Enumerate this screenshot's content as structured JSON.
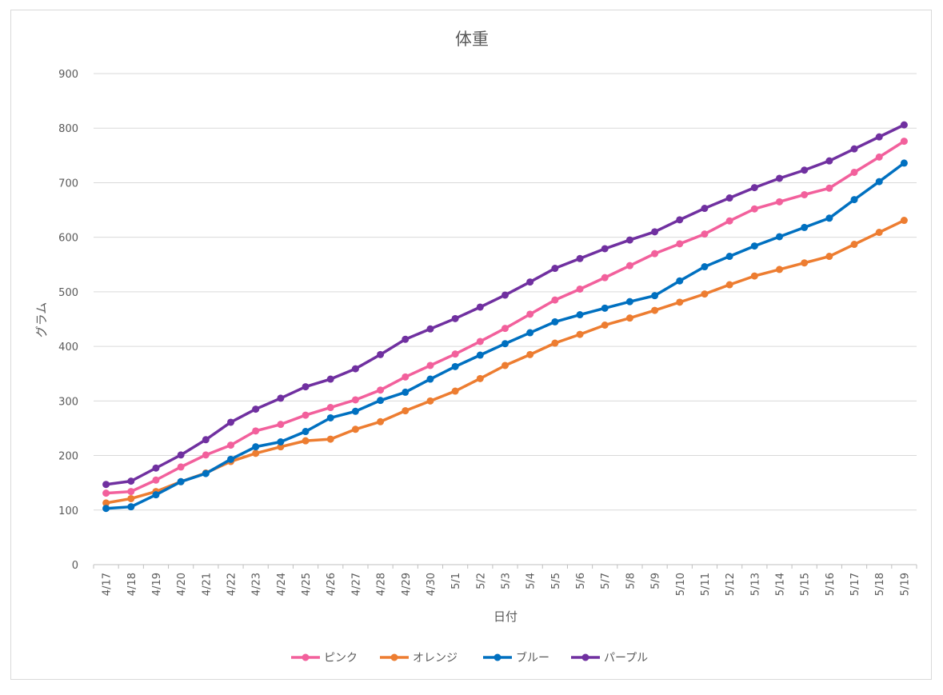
{
  "chart_data": {
    "type": "line",
    "title": "体重",
    "xlabel": "日付",
    "ylabel": "グラム",
    "ylim": [
      0,
      900
    ],
    "yticks": [
      0,
      100,
      200,
      300,
      400,
      500,
      600,
      700,
      800,
      900
    ],
    "grid": true,
    "legend": "bottom",
    "categories": [
      "4/17",
      "4/18",
      "4/19",
      "4/20",
      "4/21",
      "4/22",
      "4/23",
      "4/24",
      "4/25",
      "4/26",
      "4/27",
      "4/28",
      "4/29",
      "4/30",
      "5/1",
      "5/2",
      "5/3",
      "5/4",
      "5/5",
      "5/6",
      "5/7",
      "5/8",
      "5/9",
      "5/10",
      "5/11",
      "5/12",
      "5/13",
      "5/14",
      "5/15",
      "5/16",
      "5/17",
      "5/18",
      "5/19"
    ],
    "series": [
      {
        "name": "ピンク",
        "color": "#f2609c",
        "values": [
          131,
          134,
          155,
          179,
          201,
          219,
          245,
          257,
          274,
          288,
          302,
          320,
          344,
          365,
          386,
          409,
          433,
          459,
          485,
          505,
          526,
          548,
          570,
          588,
          606,
          630,
          652,
          665,
          678,
          690,
          719,
          747,
          776
        ]
      },
      {
        "name": "オレンジ",
        "color": "#ed7d31",
        "values": [
          113,
          121,
          134,
          152,
          168,
          189,
          204,
          216,
          227,
          230,
          248,
          262,
          282,
          300,
          318,
          341,
          365,
          385,
          406,
          422,
          439,
          452,
          466,
          481,
          496,
          513,
          529,
          541,
          553,
          565,
          587,
          609,
          631
        ]
      },
      {
        "name": "ブルー",
        "color": "#0070c0",
        "values": [
          103,
          106,
          128,
          152,
          167,
          193,
          216,
          225,
          244,
          269,
          281,
          301,
          316,
          340,
          363,
          384,
          405,
          425,
          445,
          458,
          470,
          482,
          493,
          520,
          546,
          565,
          584,
          601,
          618,
          635,
          669,
          702,
          736
        ]
      },
      {
        "name": "パープル",
        "color": "#7030a0",
        "values": [
          147,
          153,
          177,
          201,
          229,
          261,
          285,
          305,
          326,
          340,
          359,
          385,
          413,
          432,
          451,
          472,
          494,
          518,
          543,
          561,
          579,
          595,
          610,
          632,
          653,
          672,
          691,
          708,
          723,
          740,
          762,
          784,
          806
        ]
      }
    ]
  }
}
